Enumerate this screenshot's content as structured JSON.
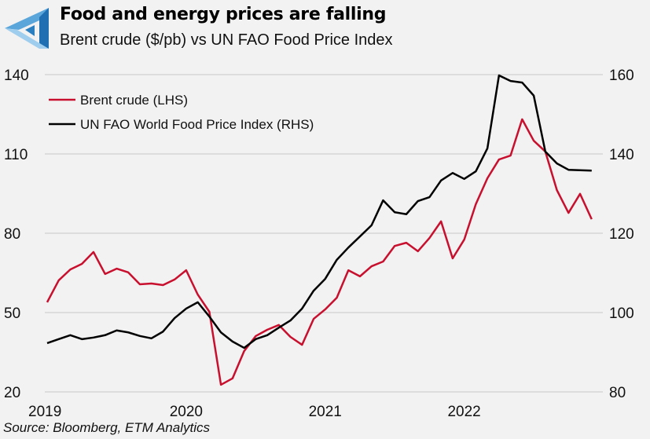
{
  "header": {
    "title": "Food and energy prices are falling",
    "subtitle": "Brent crude ($/pb) vs UN FAO Food Price Index"
  },
  "source": "Source: Bloomberg, ETM Analytics",
  "colors": {
    "brent": "#c8102e",
    "food": "#000000",
    "grid": "#d6d6d6",
    "logo": "#2a7fc0"
  },
  "chart_data": {
    "type": "line",
    "title": "Food and energy prices are falling",
    "subtitle": "Brent crude ($/pb) vs UN FAO Food Price Index",
    "x_start": "2019-01",
    "x_tick_labels": [
      "2019",
      "2020",
      "2021",
      "2022"
    ],
    "left_axis": {
      "ylim": [
        20,
        140
      ],
      "ticks": [
        "140",
        "110",
        "80",
        "50",
        "20"
      ]
    },
    "right_axis": {
      "ylim": [
        80,
        160
      ],
      "ticks": [
        "160",
        "140",
        "120",
        "100",
        "80"
      ]
    },
    "legend_position": "top-left",
    "grid": true,
    "series": [
      {
        "name": "Brent crude (LHS)",
        "axis": "left",
        "color": "#c8102e",
        "values": [
          53.9,
          62.2,
          66.3,
          68.4,
          72.9,
          64.6,
          66.6,
          65.2,
          60.7,
          61.0,
          60.4,
          62.5,
          66.0,
          56.8,
          50.3,
          22.7,
          25.1,
          35.4,
          41.1,
          43.5,
          45.3,
          40.8,
          37.8,
          47.6,
          51.2,
          55.6,
          66.0,
          63.7,
          67.5,
          69.3,
          75.2,
          76.4,
          73.2,
          78.2,
          84.5,
          70.5,
          77.6,
          91.0,
          100.8,
          107.9,
          109.4,
          123.1,
          115.0,
          110.9,
          96.3,
          87.7,
          94.9,
          85.3
        ]
      },
      {
        "name": "UN FAO World Food Price Index (RHS)",
        "axis": "right",
        "color": "#000000",
        "values": [
          92.3,
          93.3,
          94.3,
          93.3,
          93.7,
          94.3,
          95.5,
          95.0,
          94.1,
          93.5,
          95.2,
          98.6,
          101.0,
          102.6,
          99.0,
          95.0,
          92.7,
          91.1,
          93.3,
          94.3,
          96.2,
          98.0,
          101.0,
          105.5,
          108.5,
          113.3,
          116.4,
          119.2,
          122.0,
          128.3,
          125.3,
          124.8,
          128.1,
          129.1,
          133.3,
          135.2,
          133.7,
          135.6,
          141.4,
          159.8,
          158.4,
          158.0,
          154.7,
          140.6,
          137.6,
          136.0,
          135.9,
          135.8
        ]
      }
    ]
  }
}
